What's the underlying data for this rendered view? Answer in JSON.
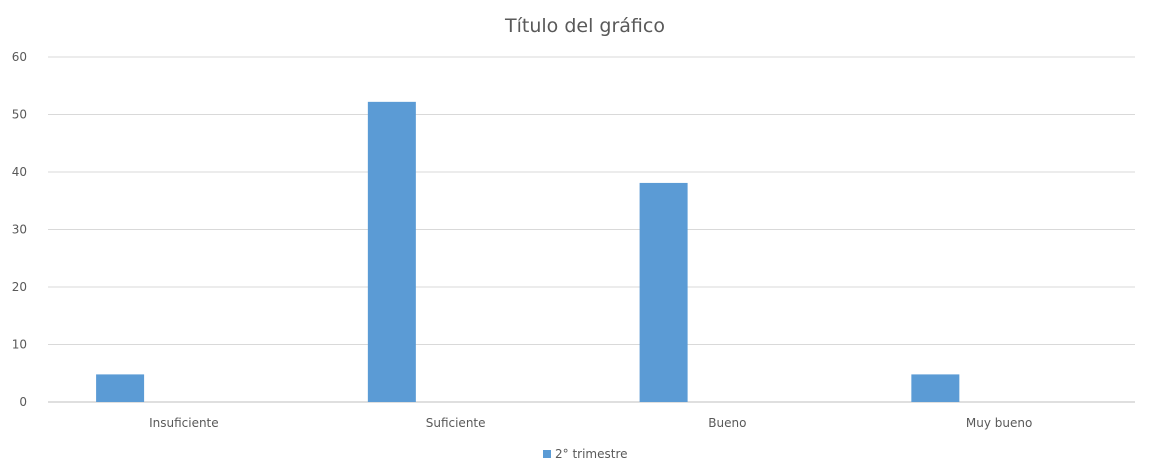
{
  "chart_data": {
    "type": "bar",
    "title": "Título del gráfico",
    "categories": [
      "Insuficiente",
      "Suficiente",
      "Bueno",
      "Muy bueno"
    ],
    "series": [
      {
        "name": "2° trimestre",
        "values": [
          4.8,
          52.2,
          38.1,
          4.8
        ],
        "color": "#5b9bd5"
      }
    ],
    "ylim": [
      0,
      60
    ],
    "yticks": [
      "0",
      "10",
      "20",
      "30",
      "40",
      "50",
      "60"
    ],
    "grid": true,
    "legend_position": "bottom"
  }
}
